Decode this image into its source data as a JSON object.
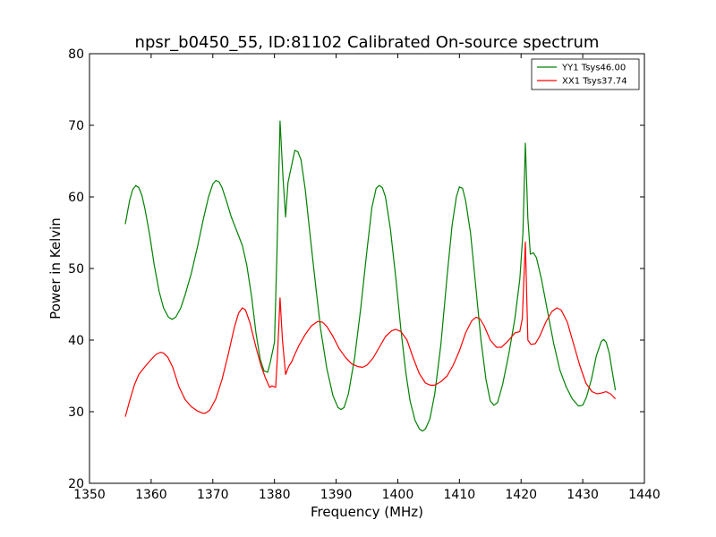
{
  "chart_data": {
    "type": "line",
    "title": "npsr_b0450_55, ID:81102 Calibrated On-source spectrum",
    "xlabel": "Frequency (MHz)",
    "ylabel": "Power in Kelvin",
    "xlim": [
      1350,
      1440
    ],
    "ylim": [
      20,
      80
    ],
    "xticks": [
      1350,
      1360,
      1370,
      1380,
      1390,
      1400,
      1410,
      1420,
      1430,
      1440
    ],
    "yticks": [
      20,
      30,
      40,
      50,
      60,
      70,
      80
    ],
    "grid": false,
    "legend_position": "top-right",
    "series": [
      {
        "name": "YY1 Tsys46.00",
        "color": "#008000",
        "points": [
          [
            1355.8,
            56.2
          ],
          [
            1356.5,
            59.5
          ],
          [
            1357.0,
            61.0
          ],
          [
            1357.5,
            61.6
          ],
          [
            1358.0,
            61.3
          ],
          [
            1358.5,
            60.2
          ],
          [
            1359.0,
            58.3
          ],
          [
            1359.8,
            54.5
          ],
          [
            1360.5,
            50.5
          ],
          [
            1361.3,
            46.8
          ],
          [
            1362.0,
            44.5
          ],
          [
            1362.8,
            43.2
          ],
          [
            1363.4,
            42.9
          ],
          [
            1364.0,
            43.2
          ],
          [
            1364.8,
            44.5
          ],
          [
            1365.5,
            46.3
          ],
          [
            1366.5,
            49.3
          ],
          [
            1367.5,
            53.0
          ],
          [
            1368.5,
            57.0
          ],
          [
            1369.3,
            60.0
          ],
          [
            1370.0,
            61.8
          ],
          [
            1370.5,
            62.3
          ],
          [
            1371.0,
            62.1
          ],
          [
            1371.5,
            61.3
          ],
          [
            1372.3,
            59.2
          ],
          [
            1373.0,
            57.2
          ],
          [
            1374.0,
            55.0
          ],
          [
            1374.8,
            53.2
          ],
          [
            1375.5,
            50.5
          ],
          [
            1376.3,
            46.0
          ],
          [
            1377.0,
            41.0
          ],
          [
            1377.7,
            37.3
          ],
          [
            1378.3,
            35.7
          ],
          [
            1378.9,
            35.5
          ],
          [
            1379.3,
            36.8
          ],
          [
            1380.0,
            39.7
          ],
          [
            1380.4,
            52.0
          ],
          [
            1380.9,
            70.6
          ],
          [
            1381.4,
            62.5
          ],
          [
            1381.8,
            57.2
          ],
          [
            1382.2,
            62.0
          ],
          [
            1382.8,
            64.5
          ],
          [
            1383.3,
            66.5
          ],
          [
            1383.8,
            66.3
          ],
          [
            1384.3,
            65.2
          ],
          [
            1385.0,
            61.0
          ],
          [
            1385.8,
            54.5
          ],
          [
            1386.7,
            47.5
          ],
          [
            1387.5,
            41.5
          ],
          [
            1388.5,
            36.0
          ],
          [
            1389.5,
            32.2
          ],
          [
            1390.3,
            30.6
          ],
          [
            1390.8,
            30.3
          ],
          [
            1391.3,
            30.6
          ],
          [
            1392.0,
            32.5
          ],
          [
            1393.0,
            37.5
          ],
          [
            1394.0,
            44.5
          ],
          [
            1395.0,
            52.5
          ],
          [
            1395.8,
            58.5
          ],
          [
            1396.5,
            61.2
          ],
          [
            1397.0,
            61.6
          ],
          [
            1397.5,
            61.3
          ],
          [
            1398.0,
            60.0
          ],
          [
            1398.8,
            55.5
          ],
          [
            1399.7,
            48.5
          ],
          [
            1400.5,
            41.5
          ],
          [
            1401.3,
            35.5
          ],
          [
            1402.0,
            31.5
          ],
          [
            1402.8,
            28.8
          ],
          [
            1403.5,
            27.6
          ],
          [
            1404.0,
            27.3
          ],
          [
            1404.5,
            27.6
          ],
          [
            1405.2,
            29.0
          ],
          [
            1406.0,
            32.5
          ],
          [
            1407.0,
            39.5
          ],
          [
            1408.0,
            49.0
          ],
          [
            1408.8,
            56.0
          ],
          [
            1409.5,
            60.0
          ],
          [
            1410.0,
            61.4
          ],
          [
            1410.5,
            61.2
          ],
          [
            1411.0,
            59.5
          ],
          [
            1411.8,
            55.0
          ],
          [
            1412.6,
            48.0
          ],
          [
            1413.5,
            40.0
          ],
          [
            1414.3,
            34.5
          ],
          [
            1415.0,
            31.5
          ],
          [
            1415.6,
            30.9
          ],
          [
            1416.2,
            31.3
          ],
          [
            1417.0,
            33.8
          ],
          [
            1418.0,
            38.0
          ],
          [
            1419.0,
            43.0
          ],
          [
            1419.8,
            48.5
          ],
          [
            1420.3,
            55.0
          ],
          [
            1420.7,
            67.5
          ],
          [
            1421.1,
            57.0
          ],
          [
            1421.5,
            52.0
          ],
          [
            1422.0,
            52.2
          ],
          [
            1422.5,
            51.5
          ],
          [
            1423.3,
            48.5
          ],
          [
            1424.3,
            44.0
          ],
          [
            1425.3,
            39.5
          ],
          [
            1426.3,
            35.8
          ],
          [
            1427.3,
            33.5
          ],
          [
            1428.3,
            31.8
          ],
          [
            1429.3,
            30.8
          ],
          [
            1430.0,
            30.9
          ],
          [
            1430.6,
            32.0
          ],
          [
            1431.4,
            34.5
          ],
          [
            1432.2,
            37.8
          ],
          [
            1433.0,
            39.8
          ],
          [
            1433.4,
            40.1
          ],
          [
            1433.8,
            39.7
          ],
          [
            1434.3,
            38.2
          ],
          [
            1434.8,
            35.5
          ],
          [
            1435.3,
            33.0
          ]
        ]
      },
      {
        "name": "XX1 Tsys37.74",
        "color": "#ff0000",
        "points": [
          [
            1355.8,
            29.3
          ],
          [
            1356.5,
            31.5
          ],
          [
            1357.3,
            33.8
          ],
          [
            1358.0,
            35.2
          ],
          [
            1359.0,
            36.3
          ],
          [
            1360.0,
            37.3
          ],
          [
            1360.8,
            38.0
          ],
          [
            1361.5,
            38.3
          ],
          [
            1362.0,
            38.2
          ],
          [
            1362.7,
            37.6
          ],
          [
            1363.5,
            36.2
          ],
          [
            1364.5,
            33.5
          ],
          [
            1365.5,
            31.7
          ],
          [
            1366.5,
            30.7
          ],
          [
            1367.5,
            30.1
          ],
          [
            1368.3,
            29.8
          ],
          [
            1368.8,
            29.8
          ],
          [
            1369.5,
            30.2
          ],
          [
            1370.5,
            31.8
          ],
          [
            1371.5,
            34.5
          ],
          [
            1372.5,
            38.0
          ],
          [
            1373.5,
            41.8
          ],
          [
            1374.2,
            43.8
          ],
          [
            1374.8,
            44.5
          ],
          [
            1375.3,
            44.2
          ],
          [
            1376.0,
            42.5
          ],
          [
            1377.0,
            39.0
          ],
          [
            1377.8,
            36.5
          ],
          [
            1378.5,
            34.8
          ],
          [
            1379.2,
            33.4
          ],
          [
            1379.6,
            33.6
          ],
          [
            1380.2,
            33.4
          ],
          [
            1380.5,
            38.0
          ],
          [
            1380.9,
            45.9
          ],
          [
            1381.3,
            40.0
          ],
          [
            1381.8,
            35.2
          ],
          [
            1382.3,
            36.3
          ],
          [
            1382.8,
            37.0
          ],
          [
            1383.3,
            38.0
          ],
          [
            1384.0,
            39.3
          ],
          [
            1385.0,
            40.8
          ],
          [
            1386.0,
            42.0
          ],
          [
            1387.0,
            42.6
          ],
          [
            1387.8,
            42.5
          ],
          [
            1388.5,
            41.9
          ],
          [
            1389.5,
            40.5
          ],
          [
            1390.5,
            38.8
          ],
          [
            1391.5,
            37.6
          ],
          [
            1392.5,
            36.7
          ],
          [
            1393.5,
            36.3
          ],
          [
            1394.3,
            36.2
          ],
          [
            1395.0,
            36.5
          ],
          [
            1396.0,
            37.5
          ],
          [
            1397.0,
            39.0
          ],
          [
            1398.0,
            40.5
          ],
          [
            1399.0,
            41.3
          ],
          [
            1399.7,
            41.5
          ],
          [
            1400.5,
            41.2
          ],
          [
            1401.5,
            40.0
          ],
          [
            1402.5,
            37.5
          ],
          [
            1403.5,
            35.3
          ],
          [
            1404.5,
            34.0
          ],
          [
            1405.3,
            33.7
          ],
          [
            1406.0,
            33.7
          ],
          [
            1407.0,
            34.2
          ],
          [
            1408.0,
            35.0
          ],
          [
            1409.0,
            36.5
          ],
          [
            1410.0,
            38.5
          ],
          [
            1411.0,
            41.0
          ],
          [
            1412.0,
            42.7
          ],
          [
            1412.7,
            43.2
          ],
          [
            1413.3,
            43.0
          ],
          [
            1414.0,
            42.0
          ],
          [
            1415.0,
            40.0
          ],
          [
            1416.0,
            39.0
          ],
          [
            1416.8,
            39.0
          ],
          [
            1417.8,
            39.8
          ],
          [
            1419.0,
            41.0
          ],
          [
            1419.8,
            41.2
          ],
          [
            1420.2,
            43.0
          ],
          [
            1420.7,
            53.7
          ],
          [
            1421.1,
            40.0
          ],
          [
            1421.6,
            39.4
          ],
          [
            1422.3,
            39.5
          ],
          [
            1423.0,
            40.5
          ],
          [
            1424.0,
            42.5
          ],
          [
            1425.0,
            44.0
          ],
          [
            1425.8,
            44.5
          ],
          [
            1426.5,
            44.2
          ],
          [
            1427.5,
            42.5
          ],
          [
            1428.5,
            39.5
          ],
          [
            1429.5,
            36.5
          ],
          [
            1430.5,
            34.0
          ],
          [
            1431.5,
            32.8
          ],
          [
            1432.3,
            32.5
          ],
          [
            1433.0,
            32.6
          ],
          [
            1433.8,
            32.8
          ],
          [
            1434.5,
            32.5
          ],
          [
            1435.3,
            31.8
          ]
        ]
      }
    ]
  }
}
